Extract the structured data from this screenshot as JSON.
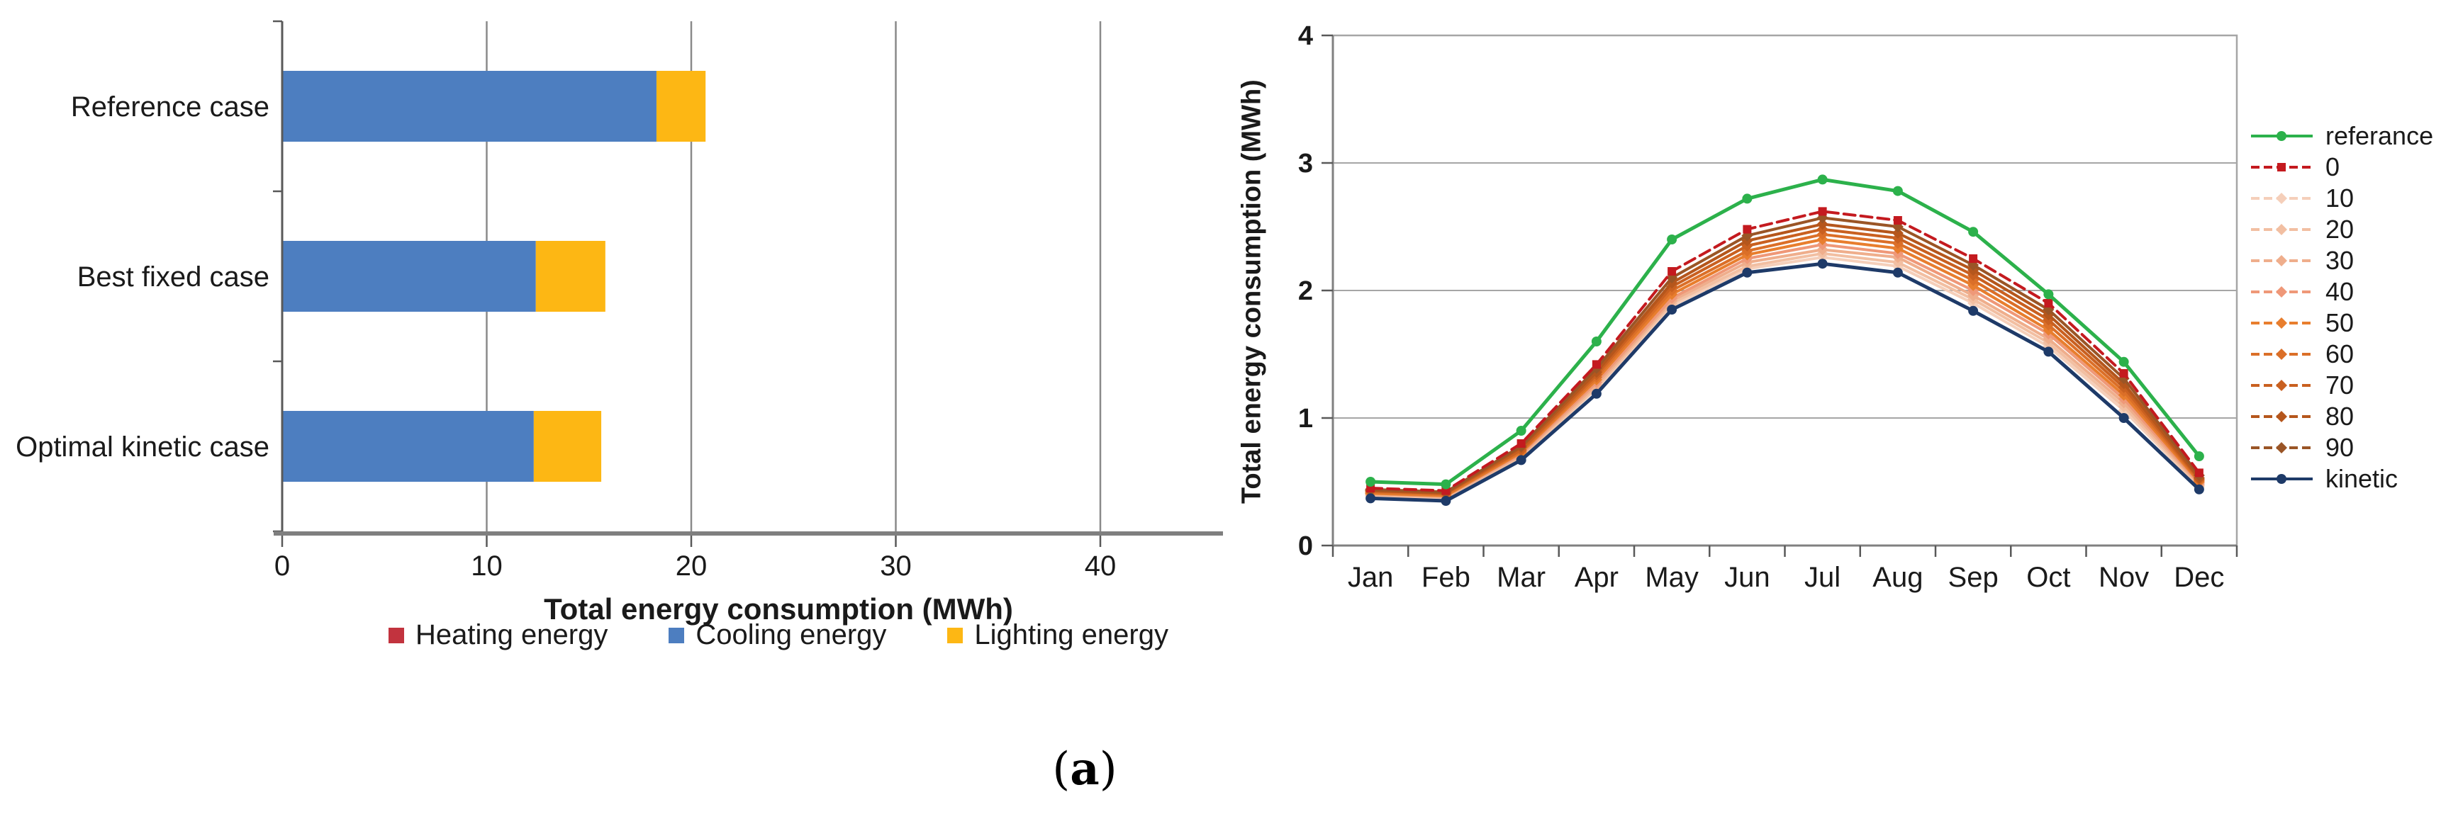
{
  "figure": {
    "caption": "(a)",
    "caption_open": "(",
    "caption_letter": "a",
    "caption_close": ")"
  },
  "left_chart": {
    "xlabel": "Total energy consumption (MWh)",
    "legend": [
      "Heating energy",
      "Cooling energy",
      "Lighting energy"
    ]
  },
  "right_chart": {
    "ylabel": "Total energy consumption (MWh)"
  },
  "colors": {
    "heating": "#c2333e",
    "cooling": "#4d7ec0",
    "lighting": "#fdb714",
    "grid_gray": "#8a8a8a",
    "axis_gray": "#7f7f7f",
    "referance_green": "#2cb14b",
    "kinetic_navy": "#1e3a68",
    "red_zero": "#c41a1f"
  },
  "chart_data": [
    {
      "type": "bar",
      "orientation": "horizontal",
      "stacked": true,
      "title": "",
      "xlabel": "Total energy consumption (MWh)",
      "categories": [
        "Reference case",
        "Best fixed case",
        "Optimal kinetic case"
      ],
      "series": [
        {
          "name": "Heating energy",
          "color": "#c2333e",
          "values": [
            0,
            0,
            0
          ]
        },
        {
          "name": "Cooling energy",
          "color": "#4d7ec0",
          "values": [
            18.3,
            12.4,
            12.3
          ]
        },
        {
          "name": "Lighting energy",
          "color": "#fdb714",
          "values": [
            2.4,
            3.4,
            3.3
          ]
        }
      ],
      "xlim": [
        0,
        46
      ],
      "xticks": [
        0,
        10,
        20,
        30,
        40
      ],
      "grid": true,
      "legend_position": "bottom"
    },
    {
      "type": "line",
      "title": "",
      "ylabel": "Total energy consumption (MWh)",
      "x": [
        "Jan",
        "Feb",
        "Mar",
        "Apr",
        "May",
        "Jun",
        "Jul",
        "Aug",
        "Sep",
        "Oct",
        "Nov",
        "Dec"
      ],
      "ylim": [
        0,
        4
      ],
      "yticks": [
        0,
        1,
        2,
        3,
        4
      ],
      "grid": true,
      "legend_position": "right",
      "series": [
        {
          "name": "referance",
          "color": "#2cb14b",
          "marker": "circle",
          "dash": false,
          "width": 5,
          "values": [
            0.5,
            0.48,
            0.9,
            1.6,
            2.4,
            2.72,
            2.87,
            2.78,
            2.46,
            1.97,
            1.44,
            0.7
          ]
        },
        {
          "name": "0",
          "color": "#c41a1f",
          "marker": "square",
          "dash": true,
          "width": 4,
          "values": [
            0.45,
            0.43,
            0.8,
            1.42,
            2.15,
            2.48,
            2.62,
            2.55,
            2.25,
            1.9,
            1.35,
            0.57
          ]
        },
        {
          "name": "10",
          "color": "#f5cfba",
          "marker": "diamond",
          "dash": false,
          "width": 4,
          "values": [
            0.39,
            0.37,
            0.69,
            1.23,
            1.88,
            2.17,
            2.26,
            2.19,
            1.9,
            1.56,
            1.06,
            0.46
          ]
        },
        {
          "name": "20",
          "color": "#f2bfa2",
          "marker": "diamond",
          "dash": false,
          "width": 4,
          "values": [
            0.4,
            0.38,
            0.7,
            1.24,
            1.9,
            2.19,
            2.29,
            2.22,
            1.93,
            1.59,
            1.09,
            0.47
          ]
        },
        {
          "name": "30",
          "color": "#efae8c",
          "marker": "diamond",
          "dash": false,
          "width": 4,
          "values": [
            0.4,
            0.38,
            0.71,
            1.26,
            1.92,
            2.22,
            2.32,
            2.26,
            1.96,
            1.62,
            1.12,
            0.48
          ]
        },
        {
          "name": "40",
          "color": "#ef9878",
          "marker": "diamond",
          "dash": false,
          "width": 4,
          "values": [
            0.41,
            0.39,
            0.72,
            1.28,
            1.94,
            2.25,
            2.36,
            2.29,
            2.0,
            1.66,
            1.15,
            0.49
          ]
        },
        {
          "name": "50",
          "color": "#e87e2e",
          "marker": "diamond",
          "dash": false,
          "width": 4,
          "values": [
            0.41,
            0.39,
            0.73,
            1.3,
            1.97,
            2.28,
            2.4,
            2.33,
            2.04,
            1.69,
            1.18,
            0.5
          ]
        },
        {
          "name": "60",
          "color": "#db6f28",
          "marker": "diamond",
          "dash": false,
          "width": 4,
          "values": [
            0.42,
            0.4,
            0.74,
            1.32,
            2.0,
            2.31,
            2.44,
            2.37,
            2.08,
            1.73,
            1.21,
            0.51
          ]
        },
        {
          "name": "70",
          "color": "#c96020",
          "marker": "diamond",
          "dash": false,
          "width": 4,
          "values": [
            0.43,
            0.41,
            0.75,
            1.34,
            2.03,
            2.35,
            2.48,
            2.41,
            2.12,
            1.77,
            1.24,
            0.52
          ]
        },
        {
          "name": "80",
          "color": "#b5561c",
          "marker": "diamond",
          "dash": false,
          "width": 4,
          "values": [
            0.43,
            0.41,
            0.77,
            1.36,
            2.06,
            2.39,
            2.52,
            2.45,
            2.16,
            1.81,
            1.27,
            0.53
          ]
        },
        {
          "name": "90",
          "color": "#9a5526",
          "marker": "diamond",
          "dash": false,
          "width": 4,
          "values": [
            0.44,
            0.42,
            0.78,
            1.39,
            2.1,
            2.43,
            2.57,
            2.5,
            2.2,
            1.85,
            1.31,
            0.55
          ]
        },
        {
          "name": "kinetic",
          "color": "#1e3a68",
          "marker": "circle",
          "dash": false,
          "width": 5,
          "values": [
            0.37,
            0.35,
            0.67,
            1.19,
            1.85,
            2.14,
            2.21,
            2.14,
            1.84,
            1.52,
            1.0,
            0.44
          ]
        }
      ]
    }
  ]
}
